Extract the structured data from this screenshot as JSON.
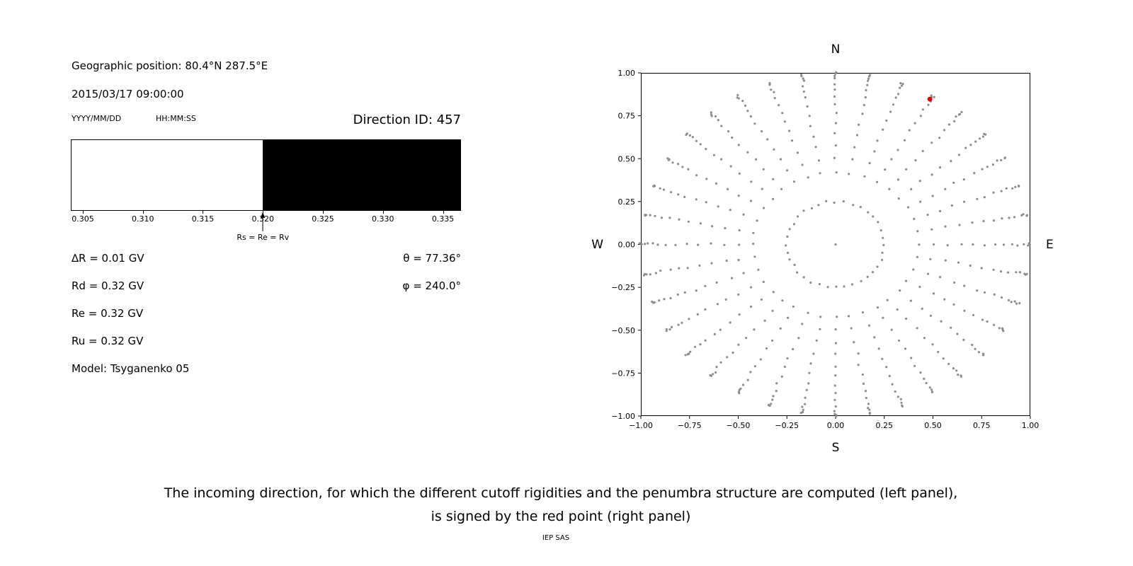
{
  "header": {
    "geographic_position": "Geographic position: 80.4°N 287.5°E",
    "datetime": "2015/03/17 09:00:00",
    "date_format_label": "YYYY/MM/DD",
    "time_format_label": "HH:MM:SS",
    "direction_id": "Direction ID: 457"
  },
  "rigidity": {
    "delta_r": "∆R = 0.01 GV",
    "rd": "Rd = 0.32 GV",
    "re": "Re = 0.32 GV",
    "ru": "Ru = 0.32 GV",
    "model": "Model: Tsyganenko 05",
    "theta": "θ = 77.36°",
    "phi": "φ = 240.0°"
  },
  "caption": {
    "line1": "The incoming direction, for which the different cutoff rigidities and the penumbra structure are computed (left panel),",
    "line2": "is signed by the red point (right panel)",
    "credit": "IEP SAS"
  },
  "chart_data": [
    {
      "name": "penumbra",
      "type": "bar",
      "xlabel": "",
      "ylabel": "",
      "xlim": [
        0.304,
        0.3365
      ],
      "ticks": [
        0.305,
        0.31,
        0.315,
        0.32,
        0.325,
        0.33,
        0.335
      ],
      "tick_labels": [
        "0.305",
        "0.310",
        "0.315",
        "0.320",
        "0.325",
        "0.330",
        "0.335"
      ],
      "segments": [
        {
          "from": 0.304,
          "to": 0.32,
          "color": "#ffffff"
        },
        {
          "from": 0.32,
          "to": 0.3365,
          "color": "#000000"
        }
      ],
      "annotation": {
        "x": 0.32,
        "label": "Rs = Re = Rv"
      }
    },
    {
      "name": "direction-map",
      "type": "scatter",
      "xlim": [
        -1,
        1
      ],
      "ylim": [
        -1,
        1
      ],
      "xticks": [
        -1,
        -0.75,
        -0.5,
        -0.25,
        0,
        0.25,
        0.5,
        0.75,
        1
      ],
      "xtick_labels": [
        "−1.00",
        "−0.75",
        "−0.50",
        "−0.25",
        "0.00",
        "0.25",
        "0.50",
        "0.75",
        "1.00"
      ],
      "yticks": [
        1,
        0.75,
        0.5,
        0.25,
        0,
        -0.25,
        -0.5,
        -0.75,
        -1
      ],
      "ytick_labels": [
        "1.00",
        "0.75",
        "0.50",
        "0.25",
        "0.00",
        "−0.25",
        "−0.50",
        "−0.75",
        "−1.00"
      ],
      "compass": {
        "top": "N",
        "bottom": "S",
        "left": "W",
        "right": "E"
      },
      "grid": false,
      "point_color": "#8c8c8c",
      "point_radius_px": 1.6,
      "highlight": {
        "x": 0.484,
        "y": 0.847,
        "color": "#dd0000",
        "radius_px": 3.4
      },
      "generator": {
        "description": "radial grid of incoming directions, radius = sin(zenith), estimated from figure",
        "azimuth_start_deg": 0,
        "azimuth_step_deg": 10,
        "azimuth_count": 36,
        "zenith_degrees": [
          14.5,
          25,
          30,
          35,
          40,
          45,
          50,
          55,
          60,
          65,
          70,
          75,
          80,
          85,
          90
        ],
        "radius_rule": "sin(zenith_deg)",
        "center_point": true,
        "jitter": 0.007
      }
    }
  ]
}
